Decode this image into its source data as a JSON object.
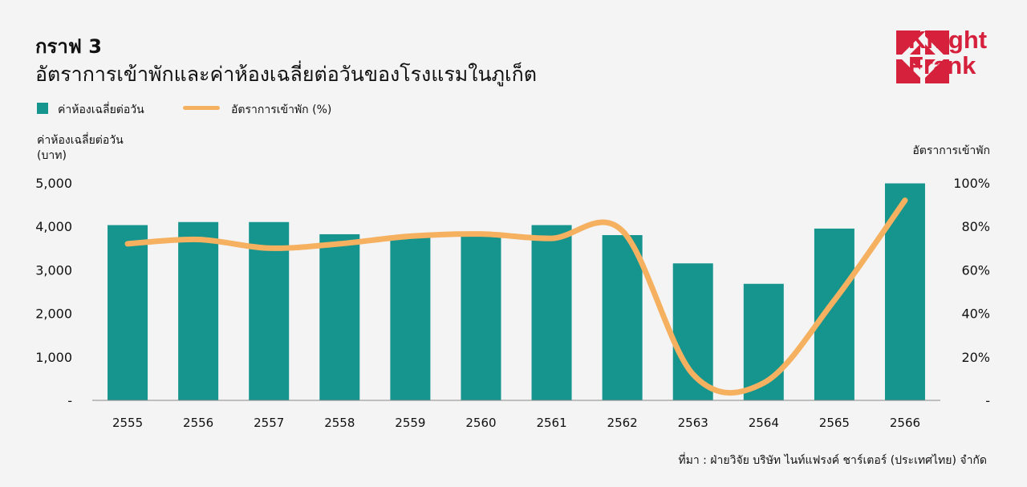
{
  "header": {
    "figure_number": "กราฟ 3",
    "title": "อัตราการเข้าพักและค่าห้องเฉลี่ยต่อวันของโรงแรมในภูเก็ต"
  },
  "logo": {
    "line1": "Knight",
    "line2": "Frank",
    "color": "#d6213d"
  },
  "legend": {
    "bar_label": "ค่าห้องเฉลี่ยต่อวัน",
    "line_label": "อัตราการเข้าพัก (%)"
  },
  "source": "ที่มา : ฝ่ายวิจัย บริษัท ไนท์แฟรงค์ ชาร์เตอร์ (ประเทศไทย) จำกัด",
  "chart_data": {
    "type": "bar",
    "categories": [
      "2555",
      "2556",
      "2557",
      "2558",
      "2559",
      "2560",
      "2561",
      "2562",
      "2563",
      "2564",
      "2565",
      "2566"
    ],
    "series": [
      {
        "name": "ค่าห้องเฉลี่ยต่อวัน",
        "type": "bar",
        "axis": "left",
        "color": "#16948e",
        "values": [
          4030,
          4100,
          4100,
          3820,
          3780,
          3800,
          4030,
          3800,
          3150,
          2680,
          3950,
          4990
        ]
      },
      {
        "name": "อัตราการเข้าพัก (%)",
        "type": "line",
        "axis": "right",
        "color": "#f5b160",
        "values": [
          72,
          74,
          70,
          72,
          75.5,
          76.5,
          74.5,
          78,
          12,
          8,
          46,
          92
        ]
      }
    ],
    "left_axis": {
      "title_line1": "ค่าห้องเฉลี่ยต่อวัน",
      "title_line2": "(บาท)",
      "range": [
        0,
        5000
      ],
      "ticks": [
        "-",
        "1,000",
        "2,000",
        "3,000",
        "4,000",
        "5,000"
      ]
    },
    "right_axis": {
      "title": "อัตราการเข้าพัก",
      "range": [
        0,
        100
      ],
      "ticks": [
        "-",
        "20%",
        "40%",
        "60%",
        "80%",
        "100%"
      ]
    },
    "grid": false,
    "legend_position": "top-left"
  }
}
